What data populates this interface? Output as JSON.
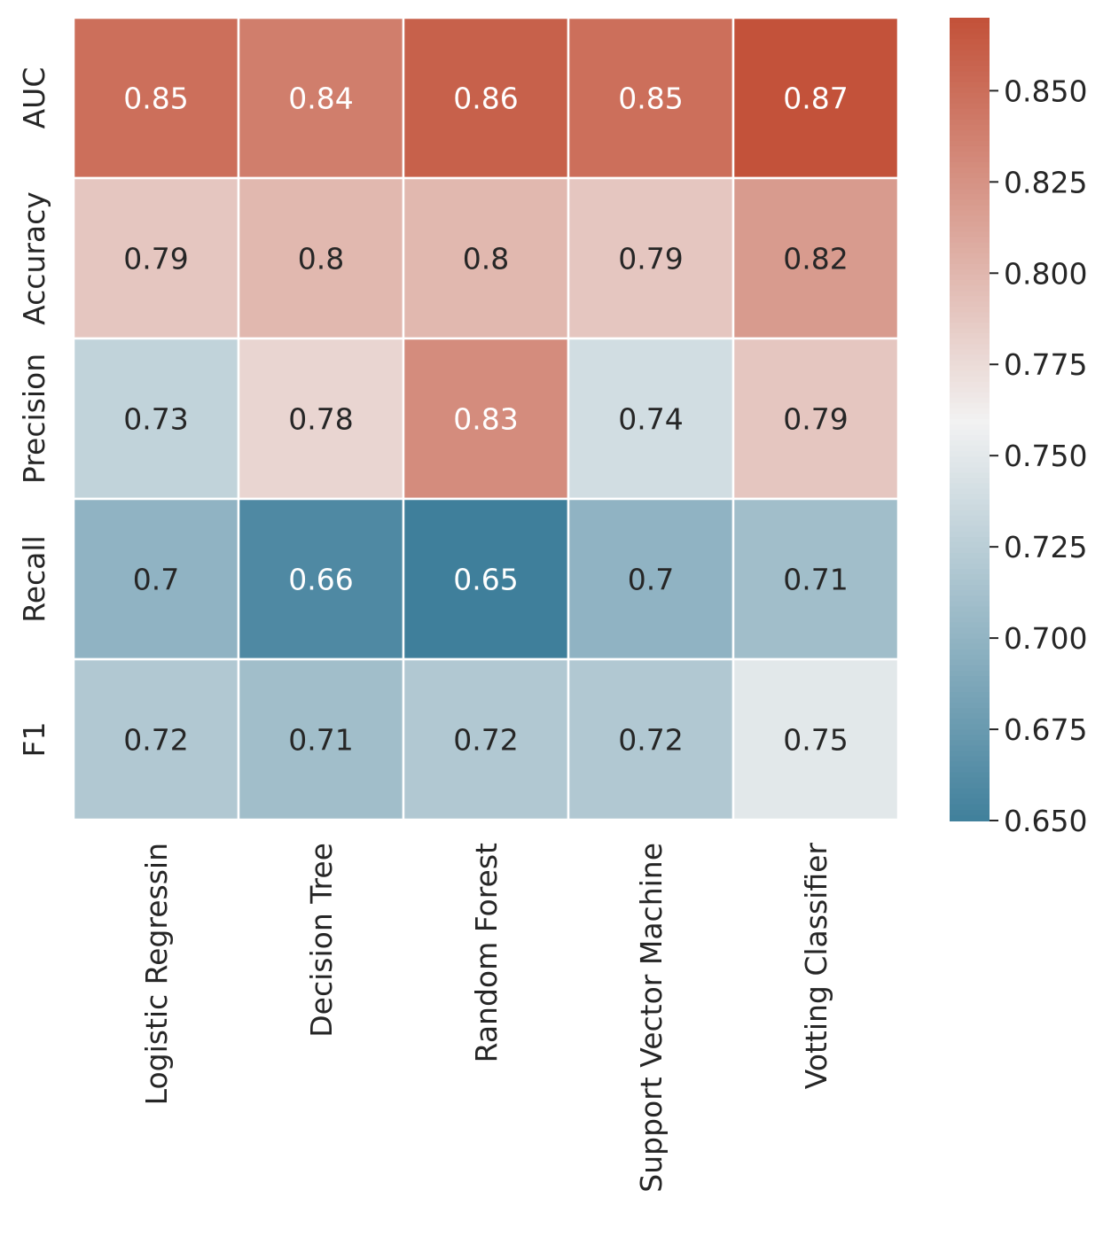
{
  "chart_data": {
    "type": "heatmap",
    "columns": [
      "Logistic Regressin",
      "Decision Tree",
      "Random Forest",
      "Support Vector Machine",
      "Votting Classifier"
    ],
    "rows": [
      "AUC",
      "Accuracy",
      "Precision",
      "Recall",
      "F1"
    ],
    "values": [
      [
        0.85,
        0.84,
        0.86,
        0.85,
        0.87
      ],
      [
        0.79,
        0.8,
        0.8,
        0.79,
        0.82
      ],
      [
        0.73,
        0.78,
        0.83,
        0.74,
        0.79
      ],
      [
        0.7,
        0.66,
        0.65,
        0.7,
        0.71
      ],
      [
        0.72,
        0.71,
        0.72,
        0.72,
        0.75
      ]
    ],
    "cell_labels": [
      [
        "0.85",
        "0.84",
        "0.86",
        "0.85",
        "0.87"
      ],
      [
        "0.79",
        "0.8",
        "0.8",
        "0.79",
        "0.82"
      ],
      [
        "0.73",
        "0.78",
        "0.83",
        "0.74",
        "0.79"
      ],
      [
        "0.7",
        "0.66",
        "0.65",
        "0.7",
        "0.71"
      ],
      [
        "0.72",
        "0.71",
        "0.72",
        "0.72",
        "0.75"
      ]
    ],
    "colorbar": {
      "min": 0.65,
      "max": 0.87,
      "ticks": [
        0.65,
        0.675,
        0.7,
        0.725,
        0.75,
        0.775,
        0.8,
        0.825,
        0.85
      ],
      "tick_labels": [
        "0.650",
        "0.675",
        "0.700",
        "0.725",
        "0.750",
        "0.775",
        "0.800",
        "0.825",
        "0.850"
      ],
      "colormap": "diverging blue-white-red",
      "low_color": "#3f7f9b",
      "mid_color": "#f2f2f2",
      "high_color": "#c3523a"
    },
    "title": "",
    "xlabel": "",
    "ylabel": ""
  }
}
